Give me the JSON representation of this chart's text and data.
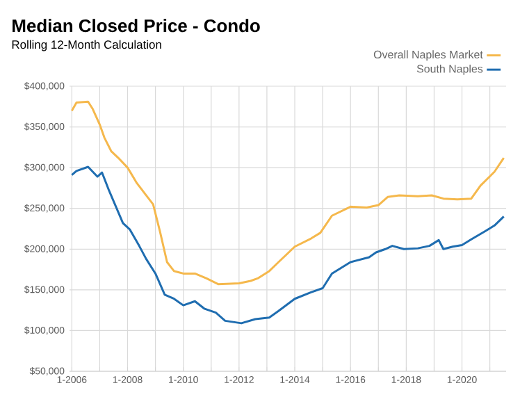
{
  "chart_data": {
    "type": "line",
    "title": "Median Closed Price - Condo",
    "subtitle": "Rolling 12-Month Calculation",
    "xlim": [
      "2005-12",
      "2021-08"
    ],
    "ylim": [
      50000,
      400000
    ],
    "xticks": [
      {
        "value": "2006-01",
        "label": "1-2006"
      },
      {
        "value": "2007-01",
        "label": null
      },
      {
        "value": "2008-01",
        "label": "1-2008"
      },
      {
        "value": "2009-01",
        "label": null
      },
      {
        "value": "2010-01",
        "label": "1-2010"
      },
      {
        "value": "2011-01",
        "label": null
      },
      {
        "value": "2012-01",
        "label": "1-2012"
      },
      {
        "value": "2013-01",
        "label": null
      },
      {
        "value": "2014-01",
        "label": "1-2014"
      },
      {
        "value": "2015-01",
        "label": null
      },
      {
        "value": "2016-01",
        "label": "1-2016"
      },
      {
        "value": "2017-01",
        "label": null
      },
      {
        "value": "2018-01",
        "label": "1-2018"
      },
      {
        "value": "2019-01",
        "label": null
      },
      {
        "value": "2020-01",
        "label": "1-2020"
      },
      {
        "value": "2021-01",
        "label": null
      }
    ],
    "yticks": [
      {
        "value": 50000,
        "label": "$50,000"
      },
      {
        "value": 100000,
        "label": "$100,000"
      },
      {
        "value": 150000,
        "label": "$150,000"
      },
      {
        "value": 200000,
        "label": "$200,000"
      },
      {
        "value": 250000,
        "label": "$250,000"
      },
      {
        "value": 300000,
        "label": "$300,000"
      },
      {
        "value": 350000,
        "label": "$350,000"
      },
      {
        "value": 400000,
        "label": "$400,000"
      }
    ],
    "grid": true,
    "legend": "top right",
    "marker": "none",
    "line_style": "solid",
    "series": [
      {
        "name": "Overall Naples Market",
        "color": "#f5b84c",
        "x": [
          "2006-01",
          "2006-03",
          "2006-08",
          "2006-10",
          "2007-01",
          "2007-03",
          "2007-06",
          "2007-09",
          "2008-01",
          "2008-05",
          "2008-09",
          "2008-12",
          "2009-03",
          "2009-06",
          "2009-09",
          "2010-01",
          "2010-06",
          "2010-11",
          "2011-04",
          "2012-01",
          "2012-06",
          "2012-09",
          "2013-02",
          "2013-06",
          "2014-01",
          "2014-08",
          "2014-12",
          "2015-05",
          "2016-01",
          "2016-08",
          "2017-01",
          "2017-05",
          "2017-10",
          "2018-06",
          "2018-12",
          "2019-05",
          "2019-11",
          "2020-05",
          "2020-09",
          "2021-03",
          "2021-07"
        ],
        "values": [
          370000,
          380000,
          381000,
          372000,
          353000,
          337000,
          320000,
          312000,
          300000,
          281000,
          266000,
          255000,
          221000,
          184000,
          173000,
          170000,
          170000,
          164000,
          157000,
          158000,
          161000,
          164000,
          173000,
          184000,
          203000,
          213000,
          220000,
          241000,
          252000,
          251000,
          254000,
          264000,
          266000,
          265000,
          266000,
          262000,
          261000,
          262000,
          278000,
          295000,
          312000
        ]
      },
      {
        "name": "South Naples",
        "color": "#1f6db0",
        "x": [
          "2006-01",
          "2006-03",
          "2006-08",
          "2006-12",
          "2007-02",
          "2007-05",
          "2007-08",
          "2007-11",
          "2008-02",
          "2008-06",
          "2008-09",
          "2009-01",
          "2009-05",
          "2009-09",
          "2010-01",
          "2010-06",
          "2010-10",
          "2011-03",
          "2011-07",
          "2012-02",
          "2012-08",
          "2013-02",
          "2013-06",
          "2014-01",
          "2014-08",
          "2015-01",
          "2015-05",
          "2016-01",
          "2016-09",
          "2016-12",
          "2017-04",
          "2017-07",
          "2017-12",
          "2018-06",
          "2018-11",
          "2019-03",
          "2019-05",
          "2019-09",
          "2020-01",
          "2020-05",
          "2020-11",
          "2021-03",
          "2021-07"
        ],
        "values": [
          291000,
          296000,
          301000,
          289000,
          294000,
          272000,
          252000,
          232000,
          224000,
          204000,
          188000,
          170000,
          144000,
          139000,
          131000,
          136000,
          127000,
          122000,
          112000,
          109000,
          114000,
          116000,
          124000,
          139000,
          147000,
          152000,
          170000,
          184000,
          190000,
          196000,
          200000,
          204000,
          200000,
          201000,
          204000,
          211000,
          200000,
          203000,
          205000,
          212000,
          222000,
          229000,
          240000
        ]
      }
    ]
  }
}
